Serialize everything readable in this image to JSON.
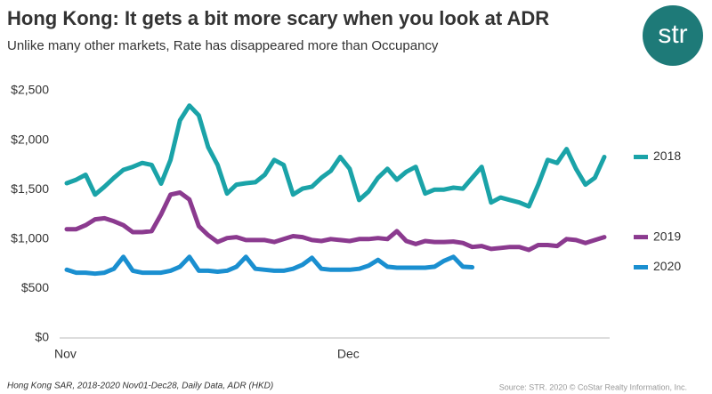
{
  "chart_data": {
    "type": "line",
    "title": "Hong Kong: It gets a bit more scary when you look at ADR",
    "subtitle": "Unlike many other markets, Rate has disappeared more than Occupancy",
    "logo": "str",
    "footnote": "Hong Kong SAR, 2018-2020 Nov01-Dec28, Daily Data, ADR (HKD)",
    "source": "Source: STR. 2020 © CoStar Realty Information, Inc.",
    "categories": [
      "Nov",
      null,
      null,
      null,
      null,
      null,
      null,
      null,
      null,
      null,
      null,
      null,
      null,
      null,
      null,
      null,
      null,
      null,
      null,
      null,
      null,
      null,
      null,
      null,
      null,
      null,
      null,
      null,
      null,
      null,
      "Dec",
      null,
      null,
      null,
      null,
      null,
      null,
      null,
      null,
      null,
      null,
      null,
      null,
      null,
      null,
      null,
      null,
      null,
      null,
      null,
      null,
      null,
      null,
      null,
      null,
      null,
      null,
      null
    ],
    "ylim": [
      0,
      2500
    ],
    "yticks": [
      {
        "value": 0,
        "label": "$0"
      },
      {
        "value": 500,
        "label": "$500"
      },
      {
        "value": 1000,
        "label": "$1,000"
      },
      {
        "value": 1500,
        "label": "$1,500"
      },
      {
        "value": 2000,
        "label": "$2,000"
      },
      {
        "value": 2500,
        "label": "$2,500"
      }
    ],
    "series": [
      {
        "name": "2018",
        "color": "#1aa3a8",
        "values": [
          1565,
          1600,
          1650,
          1450,
          1530,
          1620,
          1700,
          1730,
          1770,
          1750,
          1560,
          1800,
          2200,
          2350,
          2250,
          1930,
          1750,
          1460,
          1550,
          1565,
          1575,
          1650,
          1800,
          1750,
          1450,
          1510,
          1530,
          1620,
          1690,
          1830,
          1710,
          1395,
          1480,
          1620,
          1710,
          1600,
          1680,
          1730,
          1460,
          1500,
          1500,
          1520,
          1510,
          1620,
          1730,
          1370,
          1420,
          1395,
          1370,
          1330,
          1550,
          1800,
          1770,
          1910,
          1710,
          1550,
          1620,
          1830
        ]
      },
      {
        "name": "2019",
        "color": "#8b3a8f",
        "values": [
          1100,
          1100,
          1140,
          1200,
          1210,
          1180,
          1140,
          1070,
          1070,
          1080,
          1250,
          1450,
          1470,
          1400,
          1130,
          1040,
          970,
          1010,
          1020,
          990,
          990,
          990,
          970,
          1000,
          1030,
          1020,
          990,
          980,
          1000,
          990,
          980,
          1000,
          1000,
          1010,
          1000,
          1080,
          980,
          950,
          980,
          970,
          970,
          975,
          960,
          920,
          930,
          900,
          910,
          920,
          920,
          890,
          940,
          940,
          930,
          1000,
          990,
          960,
          990,
          1020
        ]
      },
      {
        "name": "2020",
        "color": "#1a8fd0",
        "values": [
          690,
          660,
          660,
          650,
          660,
          700,
          820,
          680,
          660,
          660,
          660,
          680,
          720,
          820,
          680,
          680,
          670,
          680,
          720,
          820,
          700,
          690,
          680,
          680,
          700,
          740,
          810,
          700,
          690,
          690,
          690,
          700,
          730,
          790,
          720,
          710,
          710,
          710,
          710,
          720,
          780,
          820,
          720,
          715,
          null,
          null,
          null,
          null,
          null,
          null,
          null,
          null,
          null,
          null,
          null,
          null,
          null,
          null
        ]
      }
    ]
  }
}
